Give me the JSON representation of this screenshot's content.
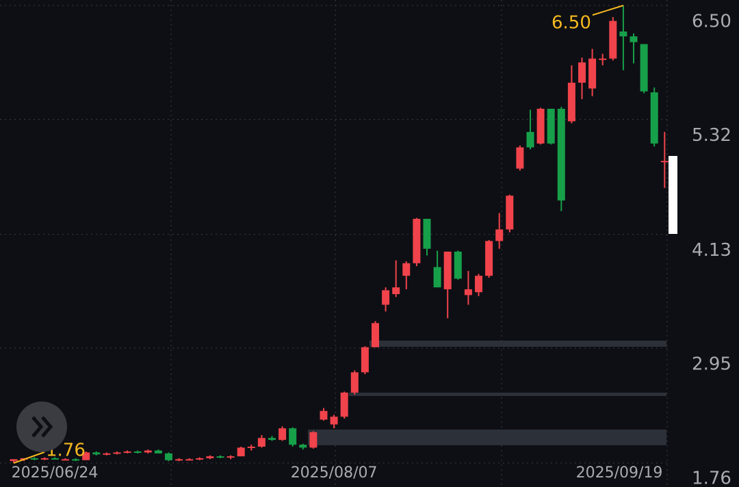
{
  "chart_data": {
    "type": "candlestick",
    "x": [
      "2025/06/24",
      null,
      null,
      null,
      null,
      null,
      null,
      null,
      null,
      null,
      null,
      null,
      null,
      null,
      null,
      null,
      null,
      null,
      null,
      null,
      null,
      null,
      null,
      null,
      null,
      null,
      null,
      null,
      null,
      null,
      null,
      "2025/08/07",
      null,
      null,
      null,
      null,
      null,
      null,
      null,
      null,
      null,
      null,
      null,
      null,
      null,
      null,
      null,
      null,
      null,
      null,
      null,
      null,
      null,
      null,
      null,
      null,
      null,
      null,
      null,
      "2025/09/19",
      null,
      null,
      null,
      null
    ],
    "open": [
      1.78,
      1.8,
      1.81,
      1.8,
      1.81,
      1.8,
      1.8,
      1.79,
      1.87,
      1.85,
      1.86,
      1.87,
      1.88,
      1.87,
      1.89,
      1.86,
      1.79,
      1.8,
      1.8,
      1.81,
      1.83,
      1.82,
      1.83,
      1.92,
      1.93,
      2.02,
      2.0,
      2.12,
      1.95,
      1.92,
      2.21,
      2.16,
      2.24,
      2.49,
      2.7,
      2.96,
      3.4,
      3.51,
      3.7,
      3.83,
      4.29,
      3.79,
      3.56,
      3.95,
      3.5,
      3.53,
      3.7,
      4.06,
      4.18,
      4.81,
      5.19,
      5.07,
      5.43,
      5.43,
      5.3,
      5.7,
      5.64,
      5.95,
      5.95,
      6.23,
      6.18,
      6.1,
      5.6,
      4.89
    ],
    "high": [
      1.8,
      1.81,
      1.82,
      1.82,
      1.82,
      1.81,
      1.81,
      1.88,
      1.88,
      1.87,
      1.88,
      1.89,
      1.89,
      1.9,
      1.9,
      1.87,
      1.81,
      1.81,
      1.82,
      1.84,
      1.84,
      1.84,
      1.93,
      1.95,
      2.05,
      2.04,
      2.14,
      2.13,
      1.96,
      2.09,
      2.33,
      2.26,
      2.5,
      2.72,
      2.97,
      3.23,
      3.58,
      3.86,
      3.85,
      4.3,
      4.29,
      3.96,
      3.95,
      3.96,
      3.75,
      3.72,
      4.07,
      4.35,
      4.54,
      5.05,
      5.42,
      5.44,
      5.43,
      5.45,
      5.88,
      5.96,
      6.05,
      6.0,
      6.38,
      6.5,
      6.21,
      6.1,
      5.65,
      5.19
    ],
    "low": [
      1.76,
      1.78,
      1.79,
      1.79,
      1.8,
      1.79,
      1.78,
      1.79,
      1.84,
      1.84,
      1.85,
      1.86,
      1.86,
      1.86,
      1.86,
      1.78,
      1.78,
      1.79,
      1.79,
      1.8,
      1.81,
      1.8,
      1.83,
      1.89,
      1.92,
      1.99,
      1.99,
      1.93,
      1.9,
      1.91,
      2.2,
      2.12,
      2.22,
      2.47,
      2.68,
      2.96,
      3.33,
      3.48,
      3.56,
      3.8,
      3.91,
      3.58,
      3.26,
      3.66,
      3.4,
      3.49,
      3.68,
      3.98,
      4.15,
      4.79,
      5.01,
      5.06,
      5.06,
      4.37,
      5.28,
      5.53,
      5.56,
      5.88,
      5.93,
      5.83,
      5.9,
      5.59,
      5.04,
      4.61
    ],
    "close": [
      1.8,
      1.81,
      1.8,
      1.81,
      1.8,
      1.8,
      1.79,
      1.87,
      1.85,
      1.86,
      1.87,
      1.88,
      1.87,
      1.89,
      1.86,
      1.79,
      1.8,
      1.8,
      1.81,
      1.83,
      1.82,
      1.83,
      1.92,
      1.93,
      2.02,
      2.0,
      2.12,
      1.95,
      1.92,
      2.08,
      2.3,
      2.24,
      2.49,
      2.7,
      2.96,
      3.21,
      3.55,
      3.58,
      3.83,
      4.29,
      3.98,
      3.58,
      3.95,
      3.67,
      3.56,
      3.7,
      4.06,
      4.18,
      4.53,
      5.03,
      5.03,
      5.43,
      5.07,
      4.48,
      5.7,
      5.91,
      5.95,
      5.95,
      6.34,
      6.18,
      6.12,
      5.61,
      5.07,
      4.89
    ],
    "up_color": "#f0434b",
    "down_color": "#17a04a",
    "ylim": [
      1.76,
      6.5
    ],
    "yticks": [
      {
        "value": 6.5,
        "label": "6.50"
      },
      5.32,
      4.13,
      2.95,
      1.76
    ],
    "grid": true,
    "annotations": [
      {
        "value": 6.5,
        "label": "6.50"
      },
      {
        "value": 1.76,
        "label": "1.76"
      }
    ]
  }
}
